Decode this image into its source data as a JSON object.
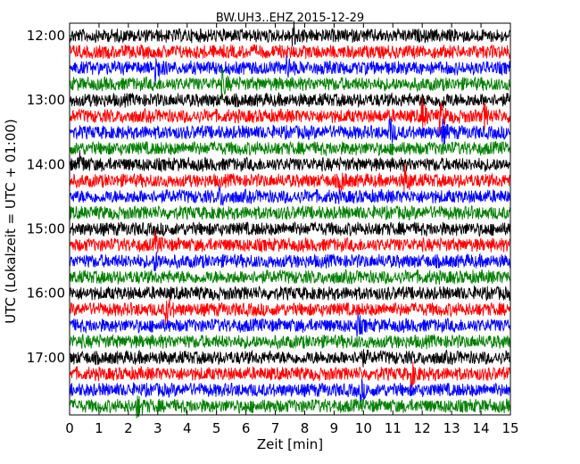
{
  "chart_data": {
    "type": "line",
    "variant": "helicorder",
    "title": "BW.UH3..EHZ 2015-12-29",
    "xlabel": "Zeit  [min]",
    "ylabel": "UTC (Lokalzeit = UTC + 01:00)",
    "xlim": [
      0,
      15
    ],
    "x_ticks": [
      0,
      1,
      2,
      3,
      4,
      5,
      6,
      7,
      8,
      9,
      10,
      11,
      12,
      13,
      14,
      15
    ],
    "y_tick_labels": [
      "12:00",
      "13:00",
      "14:00",
      "15:00",
      "16:00",
      "17:00"
    ],
    "start_time": "12:00",
    "trace_interval_min": 15,
    "trace_count": 24,
    "series_colors": [
      "#000000",
      "#ff0000",
      "#0000ff",
      "#008000"
    ],
    "grid": false,
    "events": [
      {
        "trace": 0,
        "minute": 7.6,
        "amplitude": 2.0
      },
      {
        "trace": 2,
        "minute": 2.9,
        "amplitude": 2.6
      },
      {
        "trace": 2,
        "minute": 7.4,
        "amplitude": 1.6
      },
      {
        "trace": 3,
        "minute": 5.2,
        "amplitude": 1.6
      },
      {
        "trace": 4,
        "minute": 12.6,
        "amplitude": 1.5
      },
      {
        "trace": 5,
        "minute": 12.0,
        "amplitude": 2.2
      },
      {
        "trace": 5,
        "minute": 12.6,
        "amplitude": 2.0
      },
      {
        "trace": 5,
        "minute": 14.1,
        "amplitude": 1.6
      },
      {
        "trace": 6,
        "minute": 10.9,
        "amplitude": 1.8
      },
      {
        "trace": 6,
        "minute": 12.7,
        "amplitude": 1.4
      },
      {
        "trace": 8,
        "minute": 0.35,
        "amplitude": 1.5
      },
      {
        "trace": 9,
        "minute": 9.2,
        "amplitude": 1.6
      },
      {
        "trace": 9,
        "minute": 11.4,
        "amplitude": 2.0
      },
      {
        "trace": 10,
        "minute": 5.1,
        "amplitude": 1.2
      },
      {
        "trace": 13,
        "minute": 2.9,
        "amplitude": 1.4
      },
      {
        "trace": 14,
        "minute": 2.9,
        "amplitude": 1.2
      },
      {
        "trace": 17,
        "minute": 3.3,
        "amplitude": 1.8
      },
      {
        "trace": 18,
        "minute": 9.8,
        "amplitude": 1.3
      },
      {
        "trace": 20,
        "minute": 9.9,
        "amplitude": 1.2
      },
      {
        "trace": 21,
        "minute": 11.6,
        "amplitude": 2.2
      },
      {
        "trace": 22,
        "minute": 9.9,
        "amplitude": 1.4
      },
      {
        "trace": 23,
        "minute": 2.3,
        "amplitude": 1.5
      }
    ]
  }
}
